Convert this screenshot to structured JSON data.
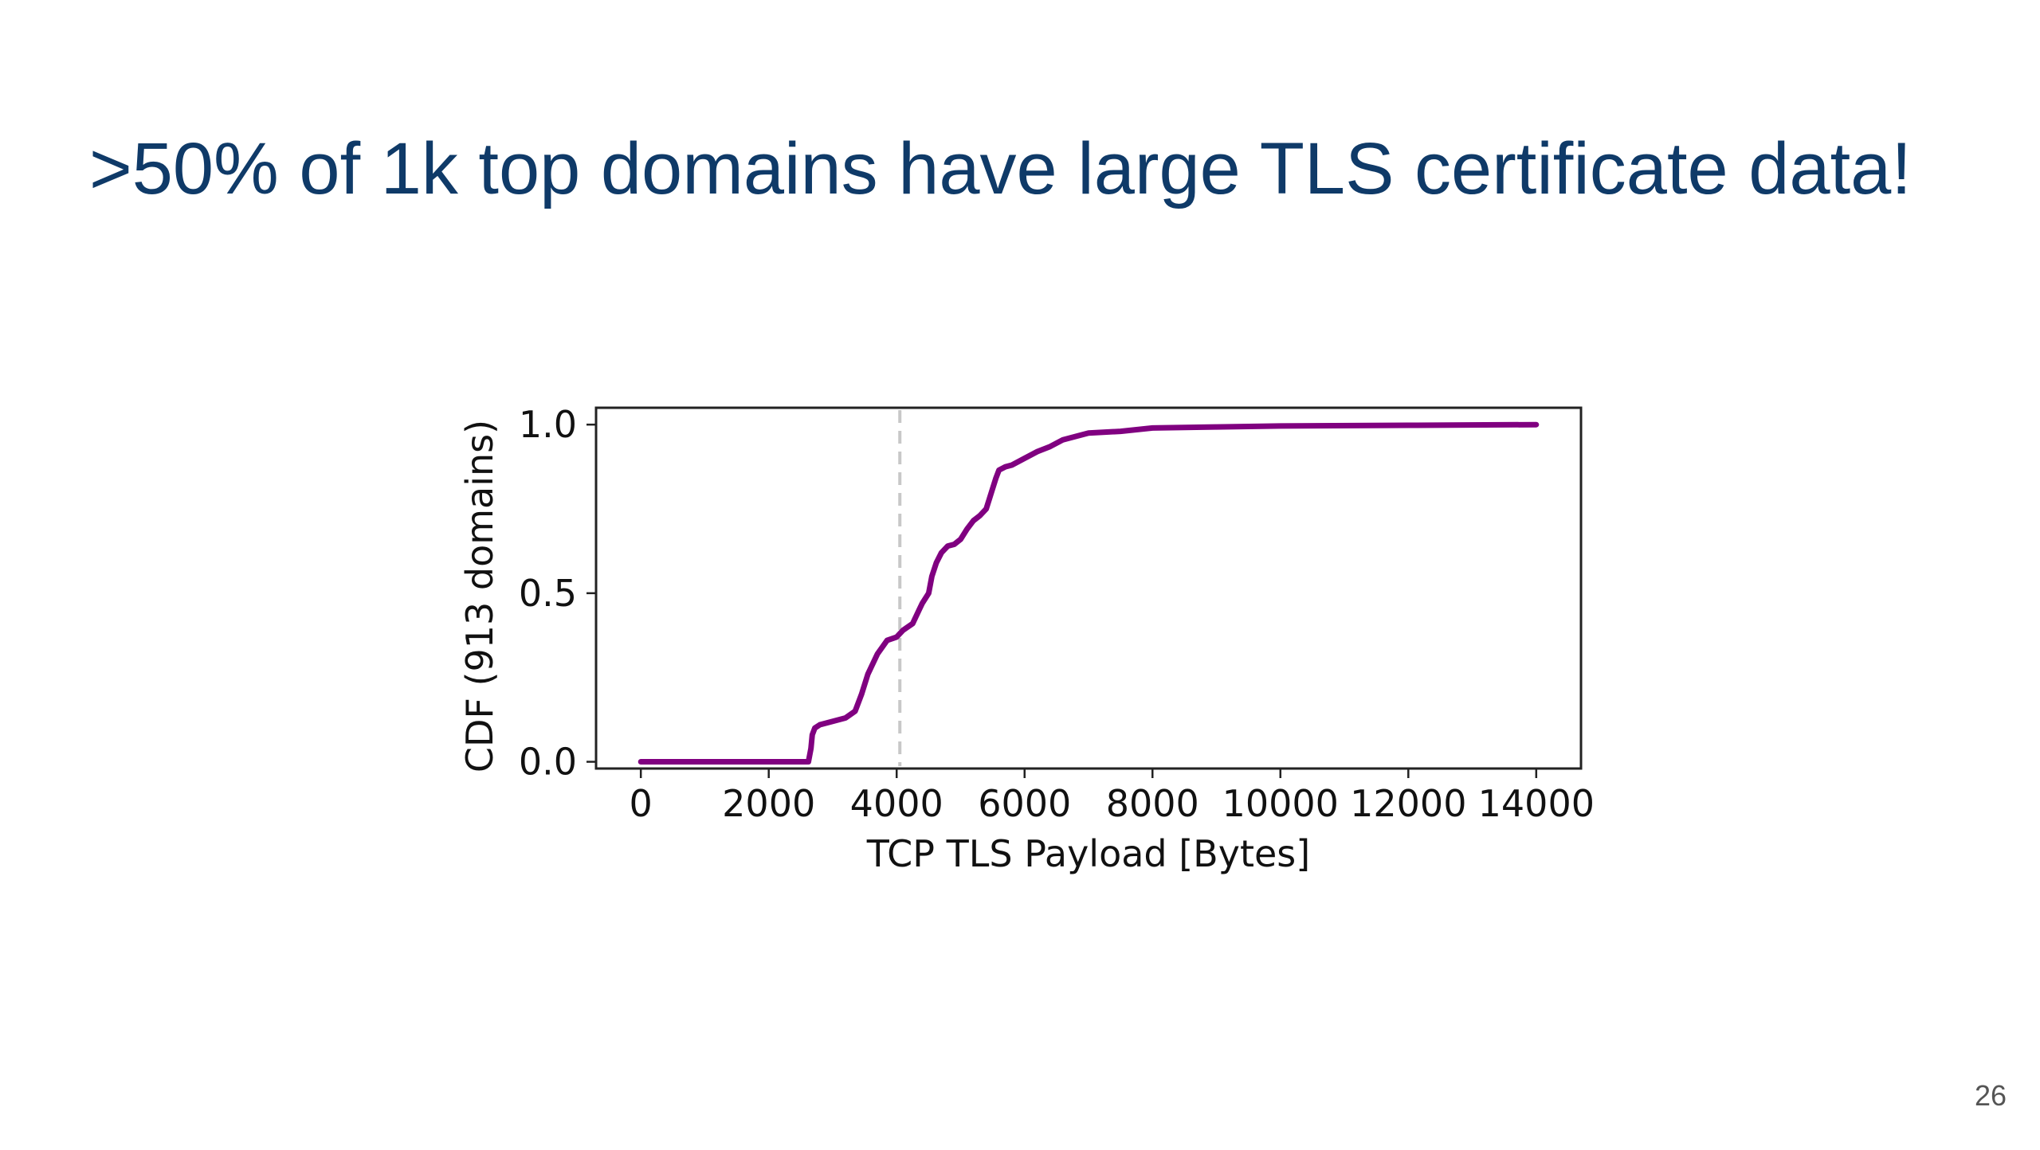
{
  "slide": {
    "title": ">50% of 1k top domains have large TLS certificate data!",
    "page_number": "26"
  },
  "colors": {
    "title": "#0f3a68",
    "line": "#800080",
    "reference_line": "#c8c8c8"
  },
  "chart_data": {
    "type": "line",
    "xlabel": "TCP TLS Payload [Bytes]",
    "ylabel": "CDF (913 domains)",
    "xlim": [
      -700,
      14700
    ],
    "ylim": [
      -0.02,
      1.05
    ],
    "xticks": [
      0,
      2000,
      4000,
      6000,
      8000,
      10000,
      12000,
      14000
    ],
    "yticks": [
      0.0,
      0.5,
      1.0
    ],
    "ytick_labels": [
      "0.0",
      "0.5",
      "1.0"
    ],
    "reference_line_x": 4050,
    "grid": false,
    "series": [
      {
        "x": [
          0,
          2500,
          2620,
          2660,
          2680,
          2720,
          2800,
          3000,
          3200,
          3350,
          3450,
          3550,
          3700,
          3850,
          4000,
          4100,
          4250,
          4350,
          4400,
          4500,
          4550,
          4620,
          4700,
          4800,
          4900,
          5000,
          5100,
          5200,
          5300,
          5400,
          5450,
          5500,
          5550,
          5600,
          5700,
          5800,
          6000,
          6200,
          6400,
          6600,
          6800,
          7000,
          7500,
          8000,
          9000,
          10000,
          12000,
          14000
        ],
        "y": [
          0.0,
          0.0,
          0.0,
          0.04,
          0.08,
          0.1,
          0.11,
          0.12,
          0.13,
          0.15,
          0.2,
          0.26,
          0.32,
          0.36,
          0.37,
          0.39,
          0.41,
          0.45,
          0.47,
          0.5,
          0.55,
          0.59,
          0.62,
          0.64,
          0.645,
          0.66,
          0.69,
          0.715,
          0.73,
          0.75,
          0.78,
          0.81,
          0.84,
          0.865,
          0.875,
          0.88,
          0.9,
          0.92,
          0.935,
          0.955,
          0.965,
          0.975,
          0.98,
          0.99,
          0.993,
          0.996,
          0.998,
          1.0
        ]
      }
    ]
  }
}
